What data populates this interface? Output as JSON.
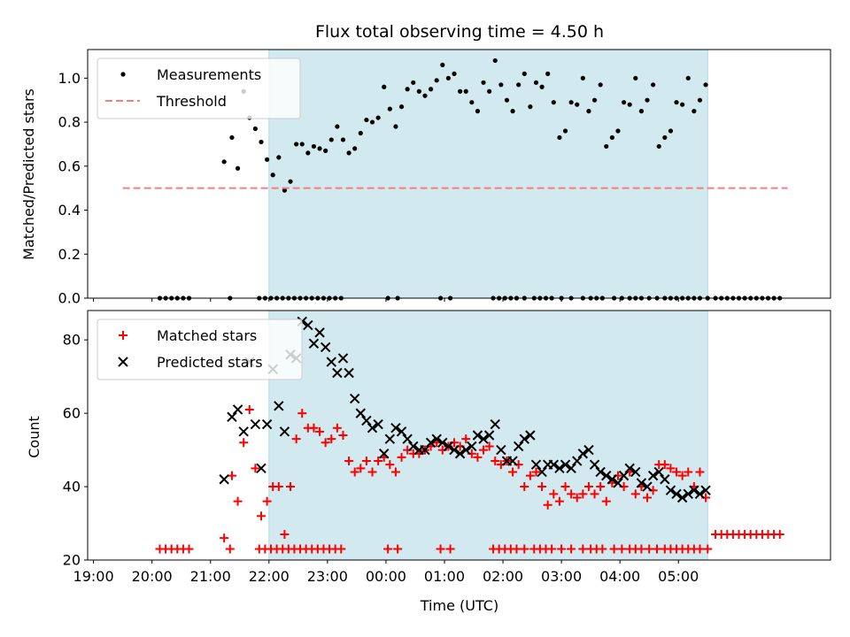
{
  "chart_data": [
    {
      "type": "scatter",
      "title": "Flux total observing time = 4.50 h",
      "xlabel": "",
      "ylabel": "Matched/Predicted stars",
      "xlim": [
        -18,
        363
      ],
      "ylim": [
        0,
        1.13
      ],
      "yticks": [
        "0.0",
        "0.2",
        "0.4",
        "0.6",
        "0.8",
        "1.0"
      ],
      "ytick_values": [
        0,
        0.2,
        0.4,
        0.6,
        0.8,
        1.0
      ],
      "legend_position": "upper-left",
      "highlight_span": {
        "x": [
          75,
          300
        ],
        "color": "#d3e9f0"
      },
      "series": [
        {
          "name": "Measurements",
          "marker": "dot",
          "color": "#000000",
          "x": [
            19,
            22,
            25,
            28,
            31,
            34,
            55,
            70,
            73,
            76,
            79,
            82,
            85,
            88,
            91,
            94,
            97,
            100,
            103,
            106,
            109,
            112,
            136,
            141,
            163,
            168,
            190,
            193,
            196,
            199,
            202,
            206,
            211,
            214,
            217,
            220,
            225,
            230,
            236,
            240,
            243,
            246,
            252,
            256,
            260,
            263,
            266,
            270,
            274,
            278,
            281,
            284,
            287,
            290,
            293,
            296,
            300
          ],
          "y": [
            0,
            0,
            0,
            0,
            0,
            0,
            0,
            0,
            0,
            0,
            0,
            0,
            0,
            0,
            0,
            0,
            0,
            0,
            0,
            0,
            0,
            0,
            0,
            0,
            0,
            0,
            0,
            0,
            0,
            0,
            0,
            0,
            0,
            0,
            0,
            0,
            0,
            0,
            0,
            0,
            0,
            0,
            0,
            0,
            0,
            0,
            0,
            0,
            0,
            0,
            0,
            0,
            0,
            0,
            0,
            0,
            0
          ]
        },
        {
          "name": "",
          "marker": "dot",
          "color": "#000000",
          "x": [
            304,
            307,
            310,
            313,
            316,
            319,
            322,
            325,
            328,
            331,
            334,
            337
          ],
          "y": [
            0,
            0,
            0,
            0,
            0,
            0,
            0,
            0,
            0,
            0,
            0,
            0
          ]
        },
        {
          "name": "",
          "marker": "dot",
          "color": "#000000",
          "x": [
            52,
            56,
            59,
            62,
            65,
            68,
            71,
            74,
            77,
            80,
            83,
            86,
            89,
            92,
            95,
            98,
            101,
            104,
            107,
            110,
            113,
            116,
            119,
            122,
            125,
            128,
            131,
            134,
            137,
            140,
            143,
            146,
            149,
            152,
            155,
            158,
            161,
            164,
            167,
            170,
            173,
            176,
            179,
            182,
            185,
            188,
            191,
            194,
            197,
            200,
            203,
            206,
            209,
            212,
            215,
            218,
            221,
            224,
            227,
            230,
            233,
            236,
            239,
            242,
            245,
            248,
            251,
            254,
            257,
            260,
            263,
            266,
            269,
            272,
            275,
            278,
            281,
            284,
            287,
            290,
            293,
            296,
            299
          ],
          "y": [
            0.62,
            0.73,
            0.59,
            0.94,
            0.82,
            0.77,
            0.71,
            0.63,
            0.56,
            0.64,
            0.49,
            0.53,
            0.7,
            0.7,
            0.66,
            0.69,
            0.68,
            0.67,
            0.72,
            0.78,
            0.72,
            0.66,
            0.68,
            0.75,
            0.81,
            0.8,
            0.82,
            0.96,
            0.86,
            0.78,
            0.87,
            0.95,
            0.98,
            0.94,
            0.92,
            0.95,
            0.99,
            1.06,
            1.0,
            1.02,
            0.94,
            0.94,
            0.89,
            0.85,
            0.98,
            0.94,
            1.08,
            0.97,
            0.9,
            0.85,
            0.97,
            1.02,
            0.87,
            0.98,
            0.96,
            1.02,
            0.89,
            0.73,
            0.76,
            0.89,
            0.88,
            1.0,
            0.85,
            0.9,
            0.97,
            0.69,
            0.73,
            0.76,
            0.89,
            0.88,
            1.0,
            0.85,
            0.9,
            0.97,
            0.69,
            0.73,
            0.76,
            0.89,
            0.88,
            1.0,
            0.85,
            0.9,
            0.97
          ]
        },
        {
          "name": "Threshold",
          "marker": "dashed-line",
          "color": "#f08080",
          "x": [
            0,
            341
          ],
          "y": [
            0.5,
            0.5
          ]
        }
      ]
    },
    {
      "type": "scatter",
      "title": "",
      "xlabel": "Time (UTC)",
      "ylabel": "Count",
      "xlim": [
        -18,
        363
      ],
      "ylim": [
        20,
        88
      ],
      "yticks": [
        "20",
        "40",
        "60",
        "80"
      ],
      "ytick_values": [
        20,
        40,
        60,
        80
      ],
      "xticks": [
        "19:00",
        "20:00",
        "21:00",
        "22:00",
        "23:00",
        "00:00",
        "01:00",
        "02:00",
        "03:00",
        "04:00",
        "05:00"
      ],
      "xtick_values": [
        -15,
        15,
        45,
        75,
        105,
        135,
        165,
        195,
        225,
        255,
        285
      ],
      "legend_position": "upper-left",
      "highlight_span": {
        "x": [
          75,
          300
        ],
        "color": "#d3e9f0"
      },
      "series": [
        {
          "name": "Matched stars",
          "marker": "plus",
          "color": "#ff0000",
          "x": [
            19,
            22,
            25,
            28,
            31,
            34,
            55,
            70,
            73,
            76,
            79,
            82,
            85,
            88,
            91,
            94,
            97,
            100,
            103,
            106,
            109,
            112,
            136,
            141,
            163,
            168,
            190,
            193,
            196,
            199,
            202,
            206,
            211,
            214,
            217,
            220,
            225,
            230,
            236,
            240,
            243,
            246,
            252,
            256,
            260,
            263,
            266,
            270,
            274,
            278,
            281,
            284,
            287,
            290,
            293,
            296,
            300,
            304,
            307,
            310,
            313,
            316,
            319,
            322,
            325,
            328,
            331,
            334,
            337
          ],
          "y": [
            23,
            23,
            23,
            23,
            23,
            23,
            23,
            23,
            23,
            23,
            23,
            23,
            23,
            23,
            23,
            23,
            23,
            23,
            23,
            23,
            23,
            23,
            23,
            23,
            23,
            23,
            23,
            23,
            23,
            23,
            23,
            23,
            23,
            23,
            23,
            23,
            23,
            23,
            23,
            23,
            23,
            23,
            23,
            23,
            23,
            23,
            23,
            23,
            23,
            23,
            23,
            23,
            23,
            23,
            23,
            23,
            23,
            27,
            27,
            27,
            27,
            27,
            27,
            27,
            27,
            27,
            27,
            27,
            27
          ]
        },
        {
          "name": "",
          "marker": "plus",
          "color": "#ff0000",
          "x": [
            52,
            56,
            59,
            62,
            65,
            68,
            71,
            74,
            77,
            80,
            83,
            86,
            89,
            92,
            95,
            98,
            101,
            104,
            107,
            110,
            113,
            116,
            119,
            122,
            125,
            128,
            131,
            134,
            137,
            140,
            143,
            146,
            149,
            152,
            155,
            158,
            161,
            164,
            167,
            170,
            173,
            176,
            179,
            182,
            185,
            188,
            191,
            194,
            197,
            200,
            203,
            206,
            209,
            212,
            215,
            218,
            221,
            224,
            227,
            230,
            233,
            236,
            239,
            242,
            245,
            248,
            251,
            254,
            257,
            260,
            263,
            266,
            269,
            272,
            275,
            278,
            281,
            284,
            287,
            290,
            293,
            296,
            299
          ],
          "y": [
            26,
            43,
            36,
            52,
            61,
            45,
            32,
            36,
            40,
            40,
            27,
            40,
            53,
            60,
            56,
            56,
            55,
            52,
            53,
            56,
            54,
            47,
            44,
            45,
            47,
            44,
            47,
            48,
            46,
            44,
            48,
            50,
            49,
            49,
            50,
            51,
            52,
            50,
            51,
            52,
            51,
            53,
            49,
            48,
            50,
            51,
            47,
            46,
            47,
            44,
            46,
            40,
            43,
            44,
            40,
            35,
            38,
            36,
            40,
            38,
            37,
            38,
            40,
            38,
            40,
            36,
            41,
            43,
            40,
            44,
            38,
            40,
            37,
            39,
            46,
            46,
            45,
            44,
            43,
            44,
            40,
            44,
            37
          ]
        },
        {
          "name": "Predicted stars",
          "marker": "x",
          "color": "#000000",
          "x": [
            52,
            56,
            59,
            62,
            65,
            68,
            71,
            74,
            77,
            80,
            83,
            86,
            89,
            92,
            95,
            98,
            101,
            104,
            107,
            110,
            113,
            116,
            119,
            122,
            125,
            128,
            131,
            134,
            137,
            140,
            143,
            146,
            149,
            152,
            155,
            158,
            161,
            164,
            167,
            170,
            173,
            176,
            179,
            182,
            185,
            188,
            191,
            194,
            197,
            200,
            203,
            206,
            209,
            212,
            215,
            218,
            221,
            224,
            227,
            230,
            233,
            236,
            239,
            242,
            245,
            248,
            251,
            254,
            257,
            260,
            263,
            266,
            269,
            272,
            275,
            278,
            281,
            284,
            287,
            290,
            293,
            296,
            299
          ],
          "y": [
            42,
            59,
            61,
            55,
            74,
            57,
            45,
            57,
            72,
            62,
            55,
            76,
            75,
            85,
            84,
            79,
            82,
            78,
            74,
            71,
            75,
            71,
            64,
            60,
            58,
            56,
            57,
            49,
            53,
            56,
            55,
            53,
            51,
            50,
            50,
            52,
            53,
            52,
            51,
            50,
            49,
            50,
            51,
            54,
            53,
            54,
            57,
            50,
            47,
            47,
            51,
            53,
            54,
            46,
            44,
            46,
            46,
            45,
            46,
            45,
            47,
            49,
            50,
            46,
            44,
            43,
            42,
            41,
            43,
            45,
            44,
            41,
            40,
            43,
            44,
            42,
            39,
            38,
            37,
            38,
            39,
            38,
            39
          ]
        }
      ]
    }
  ]
}
